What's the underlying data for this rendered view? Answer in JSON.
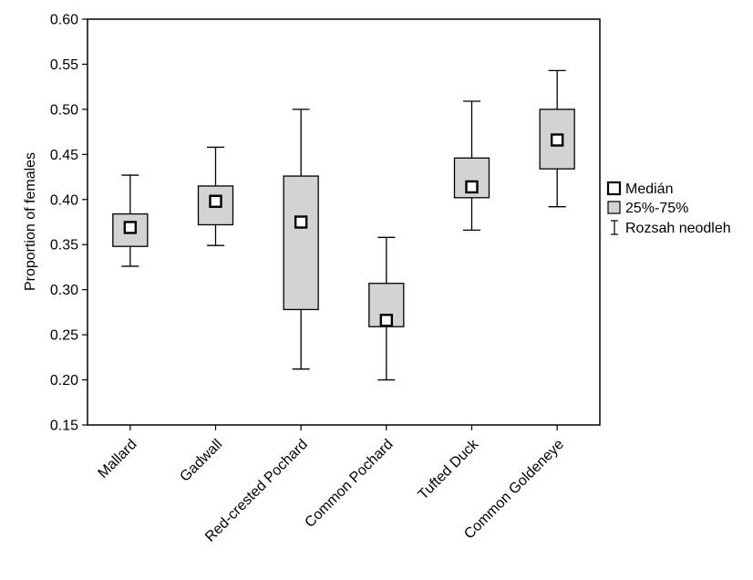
{
  "chart_data": {
    "type": "boxplot",
    "title": "",
    "xlabel": "",
    "ylabel": "Proportion of females",
    "ylim": [
      0.15,
      0.6
    ],
    "yticks": [
      "0.15",
      "0.20",
      "0.25",
      "0.30",
      "0.35",
      "0.40",
      "0.45",
      "0.50",
      "0.55",
      "0.60"
    ],
    "grid": false,
    "legend_position": "right",
    "categories": [
      "Mallard",
      "Gadwall",
      "Red-crested Pochard",
      "Common Pochard",
      "Tufted Duck",
      "Common Goldeneye"
    ],
    "series": [
      {
        "name": "Medián",
        "values": [
          0.369,
          0.398,
          0.375,
          0.266,
          0.414,
          0.466
        ]
      },
      {
        "name": "25%-75%",
        "q1": [
          0.348,
          0.372,
          0.278,
          0.259,
          0.402,
          0.434
        ],
        "q3": [
          0.384,
          0.415,
          0.426,
          0.307,
          0.446,
          0.5
        ]
      },
      {
        "name": "Rozsah neodleh",
        "min": [
          0.326,
          0.349,
          0.212,
          0.2,
          0.366,
          0.392
        ],
        "max": [
          0.427,
          0.458,
          0.5,
          0.358,
          0.509,
          0.543
        ]
      }
    ],
    "colors": {
      "box_fill": "#d3d3d3",
      "stroke": "#000000",
      "median_fill": "#ffffff"
    }
  }
}
